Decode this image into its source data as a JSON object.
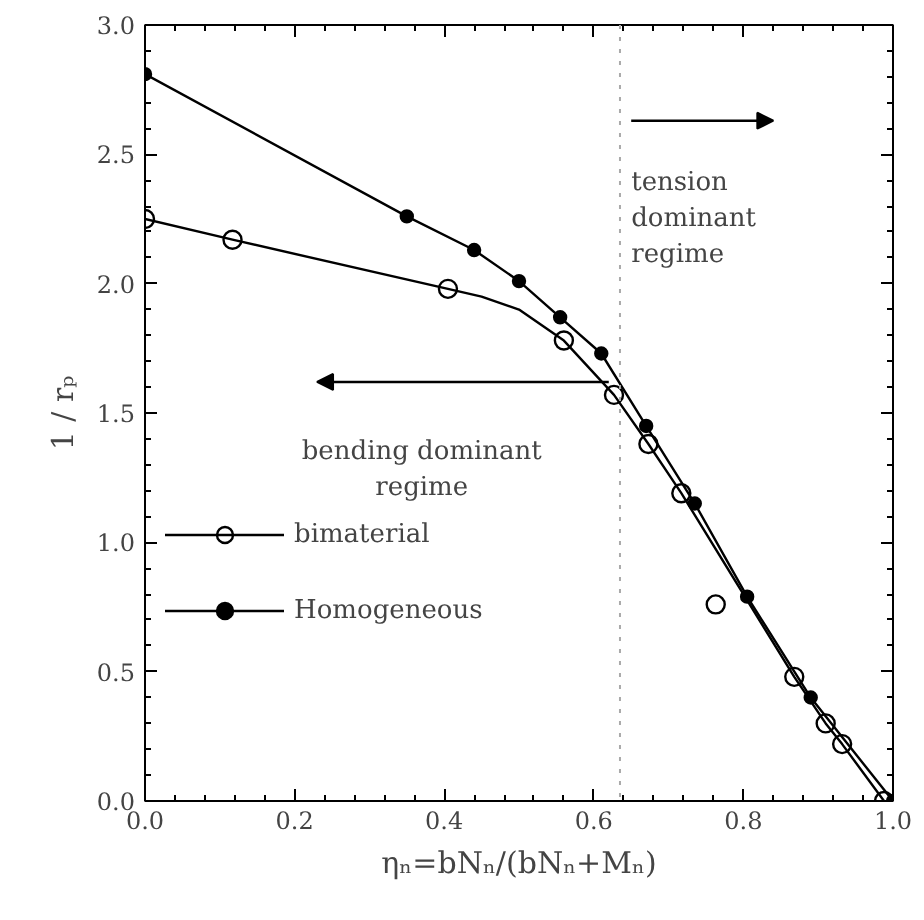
{
  "chart_data": {
    "type": "line",
    "xlabel": "ηₙ=bNₙ/(bNₙ+Mₙ)",
    "ylabel": "1 / rₚ",
    "xlim": [
      0,
      1
    ],
    "ylim": [
      0,
      3
    ],
    "xticks": [
      {
        "value": 0,
        "label": "0.0"
      },
      {
        "value": 0.2,
        "label": "0.2"
      },
      {
        "value": 0.4,
        "label": "0.4"
      },
      {
        "value": 0.6,
        "label": "0.6"
      },
      {
        "value": 0.8,
        "label": "0.8"
      },
      {
        "value": 1,
        "label": "1.0"
      }
    ],
    "yticks": [
      {
        "value": 0,
        "label": "0.0"
      },
      {
        "value": 0.5,
        "label": "0.5"
      },
      {
        "value": 1,
        "label": "1.0"
      },
      {
        "value": 1.5,
        "label": "1.5"
      },
      {
        "value": 2,
        "label": "2.0"
      },
      {
        "value": 2.5,
        "label": "2.5"
      },
      {
        "value": 3,
        "label": "3.0"
      }
    ],
    "grid": false,
    "legend": "bottom left",
    "series": [
      {
        "name": "bimaterial",
        "type": "scatter",
        "marker": "circle",
        "color": "#000000",
        "x": [
          0,
          0.117,
          0.405,
          0.56,
          0.627,
          0.673,
          0.717,
          0.763,
          0.868,
          0.91,
          0.932,
          0.988
        ],
        "values": [
          2.25,
          2.17,
          1.98,
          1.78,
          1.57,
          1.38,
          1.19,
          0.76,
          0.48,
          0.3,
          0.22,
          0
        ]
      },
      {
        "marker": "none",
        "color": "#000000",
        "x": [
          0,
          0.117,
          0.405,
          0.45,
          0.5,
          0.56,
          0.627,
          0.673,
          0.717,
          0.868,
          0.91,
          0.932,
          0.988
        ],
        "values": [
          2.25,
          2.17,
          1.98,
          1.95,
          1.9,
          1.78,
          1.57,
          1.38,
          1.19,
          0.48,
          0.3,
          0.22,
          0
        ]
      },
      {
        "name": "Homogeneous",
        "marker": "circle",
        "color": "#000000",
        "x": [
          0,
          0.35,
          0.44,
          0.5,
          0.555,
          0.61,
          0.67,
          0.735,
          0.805,
          0.89,
          1
        ],
        "values": [
          2.81,
          2.26,
          2.13,
          2.01,
          1.87,
          1.73,
          1.45,
          1.15,
          0.79,
          0.4,
          0
        ]
      }
    ],
    "ref_lines": [
      {
        "axis": "x",
        "value": 0.635,
        "line_style": "dotted",
        "color": "#aaaaaa"
      }
    ],
    "annotations": [
      "tension dominant regime",
      "bending dominant regime"
    ]
  }
}
